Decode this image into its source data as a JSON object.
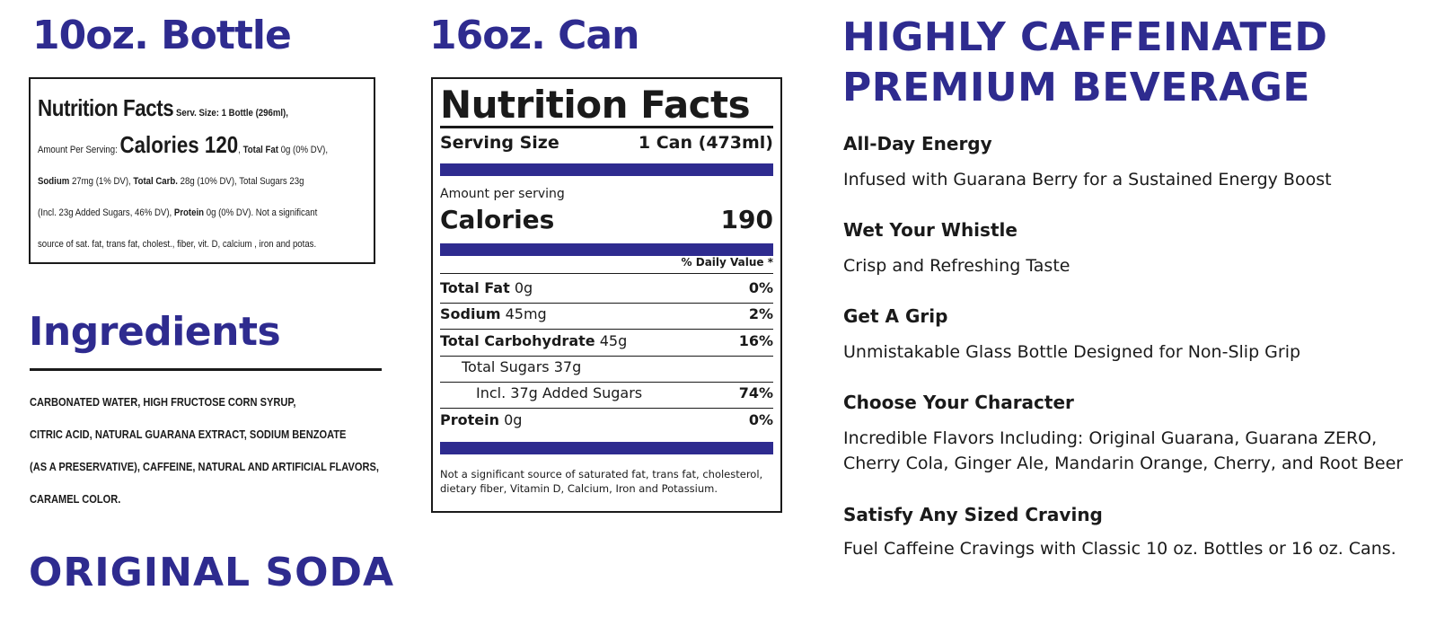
{
  "colors": {
    "accent": "#2e2b8f",
    "text": "#1a1a1a"
  },
  "bottle": {
    "heading": "10oz. Bottle",
    "label": {
      "title": "Nutrition Facts",
      "serving": "Serv. Size: 1 Bottle (296ml),",
      "amount_prefix": "Amount Per Serving:",
      "calories": "Calories 120",
      "after_calories": ",",
      "total_fat_label": "Total Fat",
      "total_fat_value": "0g (0% DV),",
      "sodium_label": "Sodium",
      "sodium_value": "27mg (1% DV),",
      "carb_label": "Total Carb.",
      "carb_value": "28g (10% DV), Total Sugars 23g",
      "added_sugars": "(Incl. 23g Added Sugars, 46% DV),",
      "protein_label": "Protein",
      "protein_value": "0g (0% DV). Not a significant",
      "footnote": "source of sat. fat, trans fat, cholest., fiber, vit. D, calcium , iron and potas."
    }
  },
  "ingredients": {
    "heading": "Ingredients",
    "lines": [
      "CARBONATED WATER, HIGH FRUCTOSE CORN SYRUP,",
      "CITRIC ACID, NATURAL GUARANA EXTRACT, SODIUM BENZOATE",
      "(AS A PRESERVATIVE), CAFFEINE, NATURAL AND ARTIFICIAL FLAVORS,",
      "CARAMEL COLOR."
    ]
  },
  "original_soda": "ORIGINAL SODA",
  "can": {
    "heading": "16oz. Can",
    "label": {
      "title": "Nutrition Facts",
      "serving_size_label": "Serving Size",
      "serving_size_value": "1 Can (473ml)",
      "amount_per_serving": "Amount per serving",
      "calories_label": "Calories",
      "calories_value": "190",
      "daily_value_header": "% Daily Value *",
      "rows": [
        {
          "label": "Total Fat",
          "amount": "0g",
          "dv": "0%"
        },
        {
          "label": "Sodium",
          "amount": "45mg",
          "dv": "2%"
        },
        {
          "label": "Total Carbohydrate",
          "amount": "45g",
          "dv": "16%"
        },
        {
          "label": "Total Sugars 37g",
          "amount": "",
          "dv": ""
        },
        {
          "label": "Incl. 37g Added Sugars",
          "amount": "",
          "dv": "74%"
        },
        {
          "label": "Protein",
          "amount": "0g",
          "dv": "0%"
        }
      ],
      "footnote": "Not a significant source of saturated fat, trans fat, cholesterol, dietary fiber, Vitamin D, Calcium, Iron and Potassium."
    }
  },
  "features": {
    "heading_line1": "HIGHLY CAFFEINATED",
    "heading_line2": "PREMIUM BEVERAGE",
    "items": [
      {
        "title": "All-Day Energy",
        "desc": "Infused with Guarana Berry for a Sustained Energy Boost"
      },
      {
        "title": "Wet Your Whistle",
        "desc": "Crisp and Refreshing Taste"
      },
      {
        "title": "Get A Grip",
        "desc": "Unmistakable Glass Bottle Designed for Non-Slip Grip"
      },
      {
        "title": "Choose Your Character",
        "desc_line1": "Incredible Flavors Including: Original Guarana, Guarana ZERO,",
        "desc_line2": "Cherry Cola, Ginger Ale, Mandarin Orange, Cherry, and Root Beer"
      },
      {
        "title": "Satisfy Any Sized Craving",
        "desc": "Fuel Caffeine Cravings with Classic 10 oz. Bottles or 16 oz. Cans."
      }
    ]
  }
}
